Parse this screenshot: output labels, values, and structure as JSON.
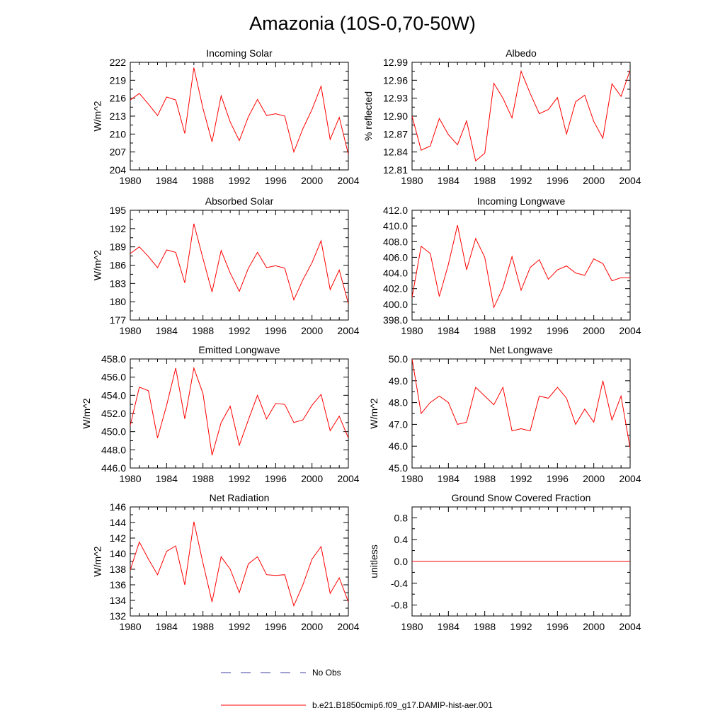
{
  "title": "Amazonia (10S-0,70-50W)",
  "line_color": "#ff0000",
  "obs_color": "#4040a0",
  "legend": {
    "obs_label": "No Obs",
    "model_label": "b.e21.B1850cmip6.f09_g17.DAMIP-hist-aer.001"
  },
  "chart_data": [
    {
      "type": "line",
      "title": "Incoming Solar",
      "ylabel": "W/m^2",
      "xlim": [
        1980,
        2004
      ],
      "ylim": [
        204,
        222
      ],
      "xticks": [
        1980,
        1984,
        1988,
        1992,
        1996,
        2000,
        2004
      ],
      "yticks": [
        204,
        207,
        210,
        213,
        216,
        219,
        222
      ],
      "ytick_labels": [
        "204",
        "207",
        "210",
        "213",
        "216",
        "219",
        "222"
      ],
      "x": [
        1980,
        1981,
        1982,
        1983,
        1984,
        1985,
        1986,
        1987,
        1988,
        1989,
        1990,
        1991,
        1992,
        1993,
        1994,
        1995,
        1996,
        1997,
        1998,
        1999,
        2000,
        2001,
        2002,
        2003,
        2004
      ],
      "series": [
        {
          "values": [
            215.7,
            216.8,
            215.0,
            213.1,
            216.2,
            215.7,
            210.1,
            221.1,
            214.3,
            208.7,
            216.4,
            212.0,
            208.9,
            212.9,
            215.8,
            213.1,
            213.4,
            213.0,
            207.0,
            210.9,
            214.1,
            218.0,
            209.1,
            212.8,
            206.6
          ]
        }
      ]
    },
    {
      "type": "line",
      "title": "Albedo",
      "ylabel": "% reflected",
      "xlim": [
        1980,
        2004
      ],
      "ylim": [
        12.81,
        12.99
      ],
      "xticks": [
        1980,
        1984,
        1988,
        1992,
        1996,
        2000,
        2004
      ],
      "yticks": [
        12.81,
        12.84,
        12.87,
        12.9,
        12.93,
        12.96,
        12.99
      ],
      "ytick_labels": [
        "12.81",
        "12.84",
        "12.87",
        "12.90",
        "12.93",
        "12.96",
        "12.99"
      ],
      "x": [
        1980,
        1981,
        1982,
        1983,
        1984,
        1985,
        1986,
        1987,
        1988,
        1989,
        1990,
        1991,
        1992,
        1993,
        1994,
        1995,
        1996,
        1997,
        1998,
        1999,
        2000,
        2001,
        2002,
        2003,
        2004
      ],
      "series": [
        {
          "values": [
            12.9,
            12.843,
            12.85,
            12.896,
            12.869,
            12.852,
            12.892,
            12.825,
            12.838,
            12.955,
            12.93,
            12.897,
            12.975,
            12.938,
            12.904,
            12.911,
            12.931,
            12.87,
            12.924,
            12.935,
            12.891,
            12.863,
            12.954,
            12.933,
            12.977
          ]
        }
      ]
    },
    {
      "type": "line",
      "title": "Absorbed Solar",
      "ylabel": "W/m^2",
      "xlim": [
        1980,
        2004
      ],
      "ylim": [
        177,
        195
      ],
      "xticks": [
        1980,
        1984,
        1988,
        1992,
        1996,
        2000,
        2004
      ],
      "yticks": [
        177,
        180,
        183,
        186,
        189,
        192,
        195
      ],
      "ytick_labels": [
        "177",
        "180",
        "183",
        "186",
        "189",
        "192",
        "195"
      ],
      "x": [
        1980,
        1981,
        1982,
        1983,
        1984,
        1985,
        1986,
        1987,
        1988,
        1989,
        1990,
        1991,
        1992,
        1993,
        1994,
        1995,
        1996,
        1997,
        1998,
        1999,
        2000,
        2001,
        2002,
        2003,
        2004
      ],
      "series": [
        {
          "values": [
            187.9,
            189.0,
            187.4,
            185.6,
            188.5,
            188.1,
            183.1,
            192.8,
            187.1,
            181.6,
            188.4,
            184.7,
            181.7,
            185.5,
            188.1,
            185.6,
            185.9,
            185.5,
            180.3,
            183.6,
            186.4,
            190.0,
            182.0,
            185.2,
            179.7
          ]
        }
      ]
    },
    {
      "type": "line",
      "title": "Incoming Longwave",
      "ylabel": "",
      "xlim": [
        1980,
        2004
      ],
      "ylim": [
        398.0,
        412.0
      ],
      "xticks": [
        1980,
        1984,
        1988,
        1992,
        1996,
        2000,
        2004
      ],
      "yticks": [
        398,
        400,
        402,
        404,
        406,
        408,
        410,
        412
      ],
      "ytick_labels": [
        "398.0",
        "400.0",
        "402.0",
        "404.0",
        "406.0",
        "408.0",
        "410.0",
        "412.0"
      ],
      "x": [
        1980,
        1981,
        1982,
        1983,
        1984,
        1985,
        1986,
        1987,
        1988,
        1989,
        1990,
        1991,
        1992,
        1993,
        1994,
        1995,
        1996,
        1997,
        1998,
        1999,
        2000,
        2001,
        2002,
        2003,
        2004
      ],
      "series": [
        {
          "values": [
            400.9,
            407.4,
            406.5,
            401.0,
            405.1,
            410.1,
            404.4,
            408.4,
            406.0,
            399.6,
            402.1,
            406.1,
            401.8,
            404.7,
            405.7,
            403.2,
            404.4,
            404.9,
            404.0,
            403.7,
            405.8,
            405.2,
            403.0,
            403.4,
            403.4
          ]
        }
      ]
    },
    {
      "type": "line",
      "title": "Emitted Longwave",
      "ylabel": "W/m^2",
      "xlim": [
        1980,
        2004
      ],
      "ylim": [
        446.0,
        458.0
      ],
      "xticks": [
        1980,
        1984,
        1988,
        1992,
        1996,
        2000,
        2004
      ],
      "yticks": [
        446,
        448,
        450,
        452,
        454,
        456,
        458
      ],
      "ytick_labels": [
        "446.0",
        "448.0",
        "450.0",
        "452.0",
        "454.0",
        "456.0",
        "458.0"
      ],
      "x": [
        1980,
        1981,
        1982,
        1983,
        1984,
        1985,
        1986,
        1987,
        1988,
        1989,
        1990,
        1991,
        1992,
        1993,
        1994,
        1995,
        1996,
        1997,
        1998,
        1999,
        2000,
        2001,
        2002,
        2003,
        2004
      ],
      "series": [
        {
          "values": [
            450.7,
            454.9,
            454.5,
            449.3,
            452.9,
            457.0,
            451.4,
            457.0,
            454.2,
            447.4,
            451.0,
            452.8,
            448.5,
            451.3,
            454.0,
            451.4,
            453.1,
            453.0,
            451.0,
            451.3,
            452.9,
            454.1,
            450.1,
            451.7,
            449.3
          ]
        }
      ]
    },
    {
      "type": "line",
      "title": "Net Longwave",
      "ylabel": "W/m^2",
      "xlim": [
        1980,
        2004
      ],
      "ylim": [
        45.0,
        50.0
      ],
      "xticks": [
        1980,
        1984,
        1988,
        1992,
        1996,
        2000,
        2004
      ],
      "yticks": [
        45,
        46,
        47,
        48,
        49,
        50
      ],
      "ytick_labels": [
        "45.0",
        "46.0",
        "47.0",
        "48.0",
        "49.0",
        "50.0"
      ],
      "x": [
        1980,
        1981,
        1982,
        1983,
        1984,
        1985,
        1986,
        1987,
        1988,
        1989,
        1990,
        1991,
        1992,
        1993,
        1994,
        1995,
        1996,
        1997,
        1998,
        1999,
        2000,
        2001,
        2002,
        2003,
        2004
      ],
      "series": [
        {
          "values": [
            50.0,
            47.5,
            48.0,
            48.3,
            48.0,
            47.0,
            47.1,
            48.7,
            48.3,
            47.9,
            48.7,
            46.7,
            46.8,
            46.7,
            48.3,
            48.2,
            48.7,
            48.2,
            47.0,
            47.7,
            47.1,
            49.0,
            47.2,
            48.3,
            45.9
          ]
        }
      ]
    },
    {
      "type": "line",
      "title": "Net Radiation",
      "ylabel": "W/m^2",
      "xlim": [
        1980,
        2004
      ],
      "ylim": [
        132,
        146
      ],
      "xticks": [
        1980,
        1984,
        1988,
        1992,
        1996,
        2000,
        2004
      ],
      "yticks": [
        132,
        134,
        136,
        138,
        140,
        142,
        144,
        146
      ],
      "ytick_labels": [
        "132",
        "134",
        "136",
        "138",
        "140",
        "142",
        "144",
        "146"
      ],
      "x": [
        1980,
        1981,
        1982,
        1983,
        1984,
        1985,
        1986,
        1987,
        1988,
        1989,
        1990,
        1991,
        1992,
        1993,
        1994,
        1995,
        1996,
        1997,
        1998,
        1999,
        2000,
        2001,
        2002,
        2003,
        2004
      ],
      "series": [
        {
          "values": [
            137.9,
            141.5,
            139.3,
            137.3,
            140.3,
            141.0,
            136.0,
            144.1,
            138.8,
            133.8,
            139.6,
            138.0,
            135.0,
            138.7,
            139.6,
            137.3,
            137.2,
            137.3,
            133.3,
            136.0,
            139.3,
            140.9,
            134.9,
            136.9,
            133.8
          ]
        }
      ]
    },
    {
      "type": "line",
      "title": "Ground Snow Covered Fraction",
      "ylabel": "unitless",
      "xlim": [
        1980,
        2004
      ],
      "ylim": [
        -1.0,
        1.0
      ],
      "xticks": [
        1980,
        1984,
        1988,
        1992,
        1996,
        2000,
        2004
      ],
      "yticks": [
        -0.8,
        -0.4,
        0.0,
        0.4,
        0.8
      ],
      "ytick_labels": [
        "-0.8",
        "-0.4",
        "0.0",
        "0.4",
        "0.8"
      ],
      "x": [
        1980,
        1981,
        1982,
        1983,
        1984,
        1985,
        1986,
        1987,
        1988,
        1989,
        1990,
        1991,
        1992,
        1993,
        1994,
        1995,
        1996,
        1997,
        1998,
        1999,
        2000,
        2001,
        2002,
        2003,
        2004
      ],
      "series": [
        {
          "values": [
            0,
            0,
            0,
            0,
            0,
            0,
            0,
            0,
            0,
            0,
            0,
            0,
            0,
            0,
            0,
            0,
            0,
            0,
            0,
            0,
            0,
            0,
            0,
            0,
            0
          ]
        }
      ]
    }
  ]
}
